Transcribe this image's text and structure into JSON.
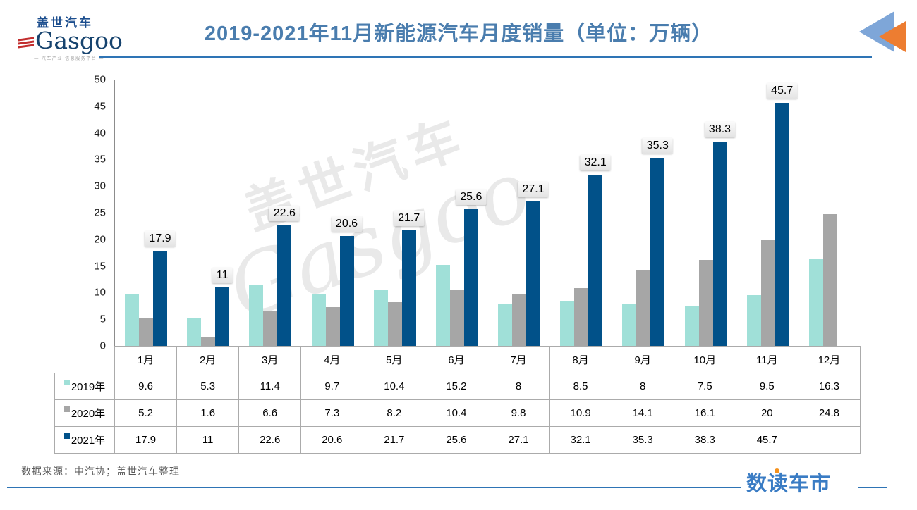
{
  "header": {
    "logo": {
      "cn": "盖世汽车",
      "en": "Gasgoo",
      "tagline": "— 汽车产业 信息服务平台 —"
    },
    "title": "2019-2021年11月新能源汽车月度销量（单位：万辆）"
  },
  "chart_data": {
    "type": "bar",
    "title": "2019-2021年11月新能源汽车月度销量（单位：万辆）",
    "unit": "万辆",
    "categories": [
      "1月",
      "2月",
      "3月",
      "4月",
      "5月",
      "6月",
      "7月",
      "8月",
      "9月",
      "10月",
      "11月",
      "12月"
    ],
    "series": [
      {
        "name": "2019年",
        "color": "#A0E0D8",
        "values": [
          9.6,
          5.3,
          11.4,
          9.7,
          10.4,
          15.2,
          8,
          8.5,
          8,
          7.5,
          9.5,
          16.3
        ]
      },
      {
        "name": "2020年",
        "color": "#A6A6A6",
        "values": [
          5.2,
          1.6,
          6.6,
          7.3,
          8.2,
          10.4,
          9.8,
          10.9,
          14.1,
          16.1,
          20,
          24.8
        ]
      },
      {
        "name": "2021年",
        "color": "#015189",
        "data_labels": true,
        "values": [
          17.9,
          11,
          22.6,
          20.6,
          21.7,
          25.6,
          27.1,
          32.1,
          35.3,
          38.3,
          45.7,
          null
        ]
      }
    ],
    "ylim": [
      0,
      50
    ],
    "yticks": [
      0,
      5,
      10,
      15,
      20,
      25,
      30,
      35,
      40,
      45,
      50
    ],
    "grid": false,
    "legend_position": "table-rows-left",
    "data_label_style": "gray-box-above-2021-bars"
  },
  "watermark": {
    "cn": "盖世汽车",
    "en": "Gasgoo"
  },
  "footer": {
    "source": "数据来源：中汽协；盖世汽车整理",
    "brand": "数读车市"
  },
  "colors": {
    "title_blue": "#4A7DAE",
    "underline_blue": "#2E74B5",
    "bar_2019": "#A0E0D8",
    "bar_2020": "#A6A6A6",
    "bar_2021": "#015189",
    "brand_blue": "#3A7CC4",
    "brand_dot_orange": "#F5921E",
    "corner_triangle_blue": "#7EA6D8",
    "corner_triangle_orange": "#ED7D31"
  }
}
